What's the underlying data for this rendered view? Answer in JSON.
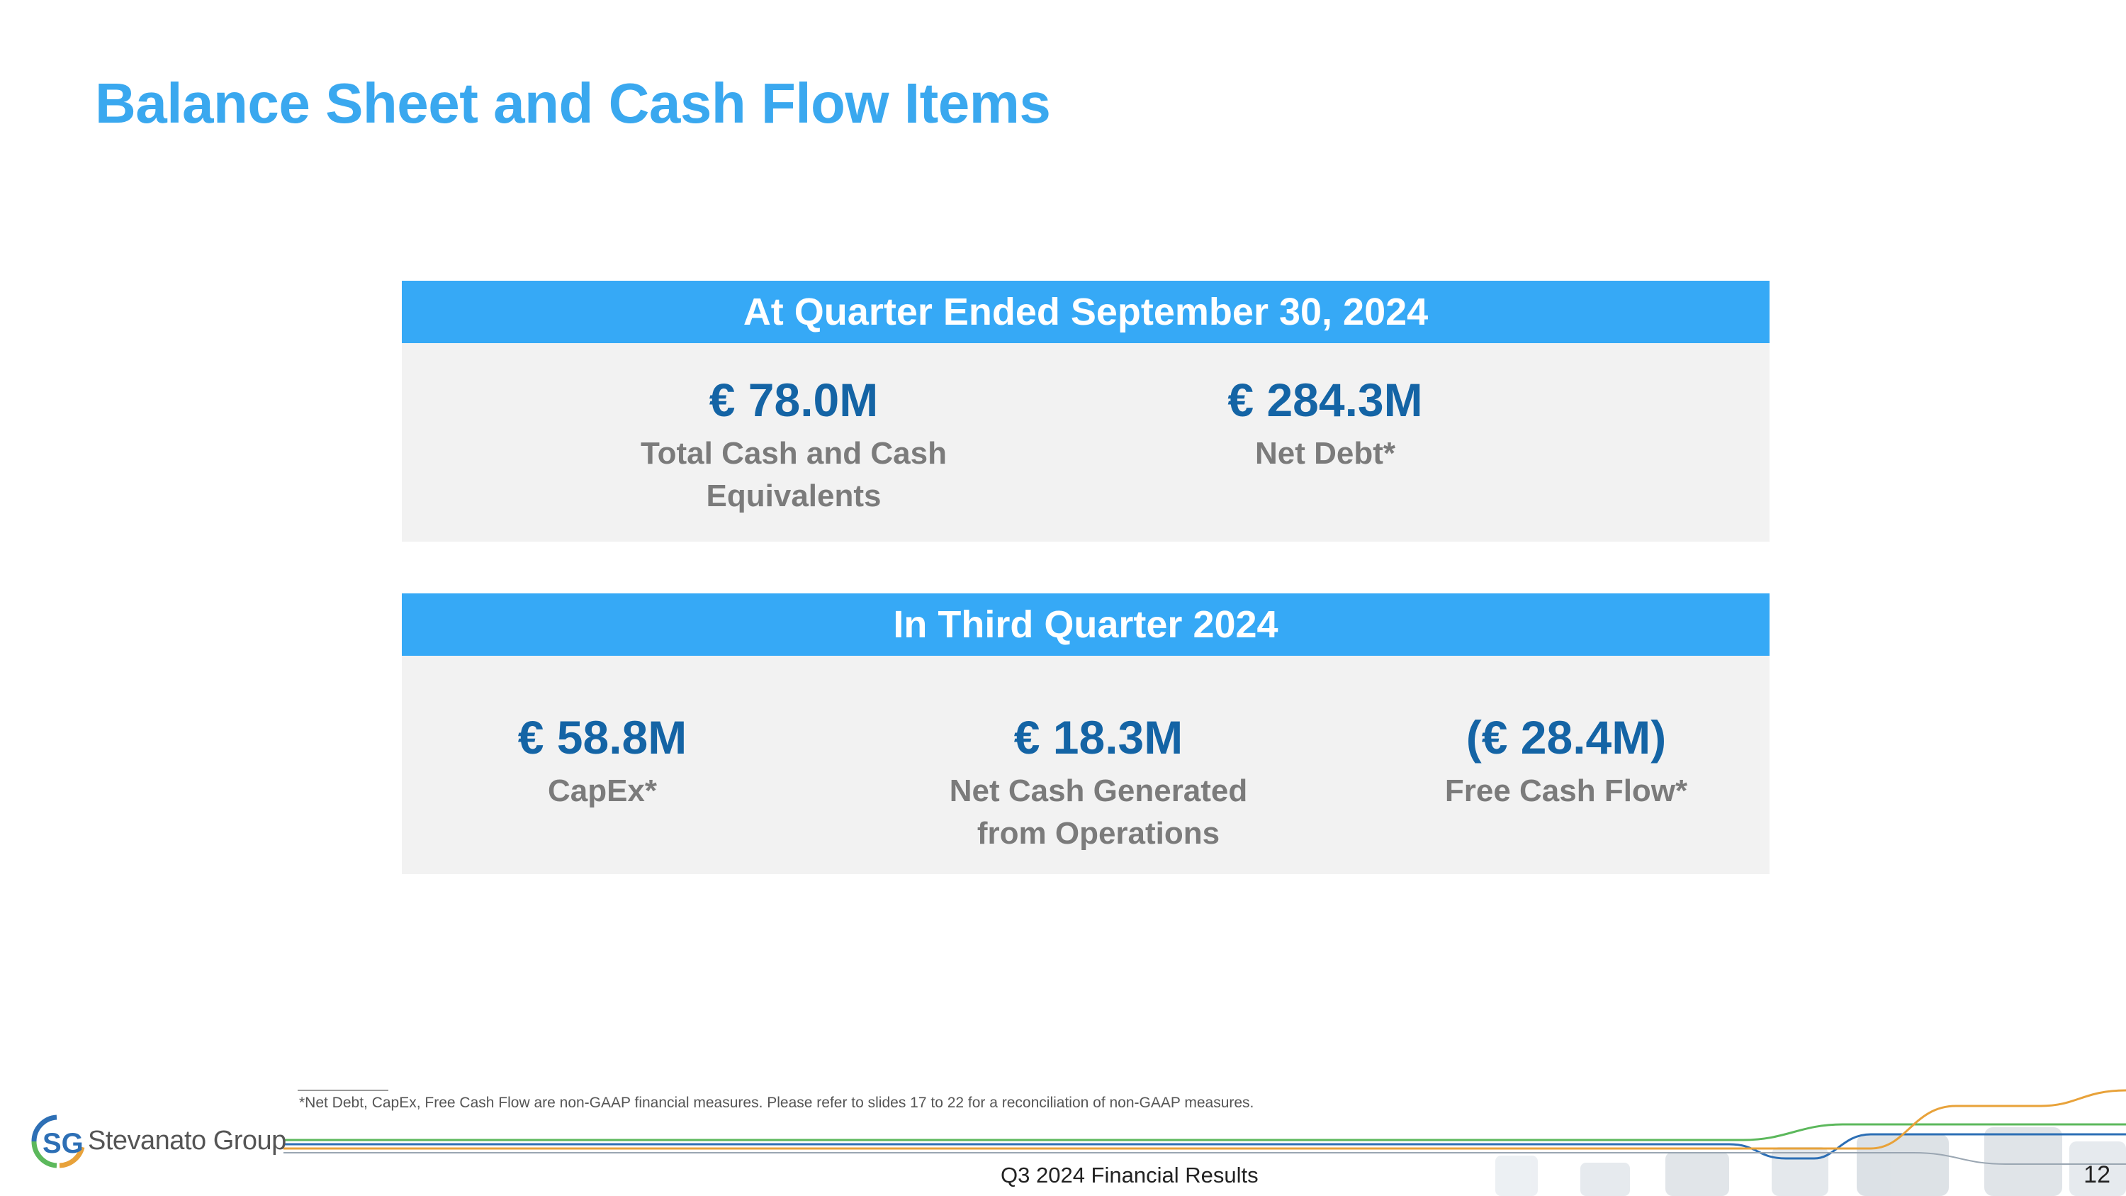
{
  "slide": {
    "title": "Balance Sheet and Cash Flow Items"
  },
  "panels": [
    {
      "header": "At Quarter Ended September 30, 2024",
      "metrics": [
        {
          "value": "€ 78.0M",
          "label": "Total Cash and Cash Equivalents"
        },
        {
          "value": "€ 284.3M",
          "label": "Net Debt*"
        }
      ]
    },
    {
      "header": "In Third Quarter 2024",
      "metrics": [
        {
          "value": "€ 58.8M",
          "label": "CapEx*"
        },
        {
          "value": "€ 18.3M",
          "label": "Net Cash Generated from Operations"
        },
        {
          "value": "(€ 28.4M)",
          "label": "Free Cash Flow*"
        }
      ]
    }
  ],
  "footnote": "*Net Debt, CapEx, Free Cash Flow are non-GAAP financial measures. Please refer to slides 17 to 22 for a reconciliation of non-GAAP measures.",
  "footer": {
    "logo_mark": "SG",
    "logo_text": "Stevanato Group",
    "center_text": "Q3 2024 Financial Results",
    "page_number": "12"
  },
  "colors": {
    "title": "#3aa8ef",
    "header_bg": "#36a9f6",
    "panel_bg": "#f2f2f2",
    "value": "#1464a5",
    "label": "#7b7b7b",
    "line_green": "#5cb85c",
    "line_blue": "#2d6fb5",
    "line_orange": "#e8a23a"
  }
}
